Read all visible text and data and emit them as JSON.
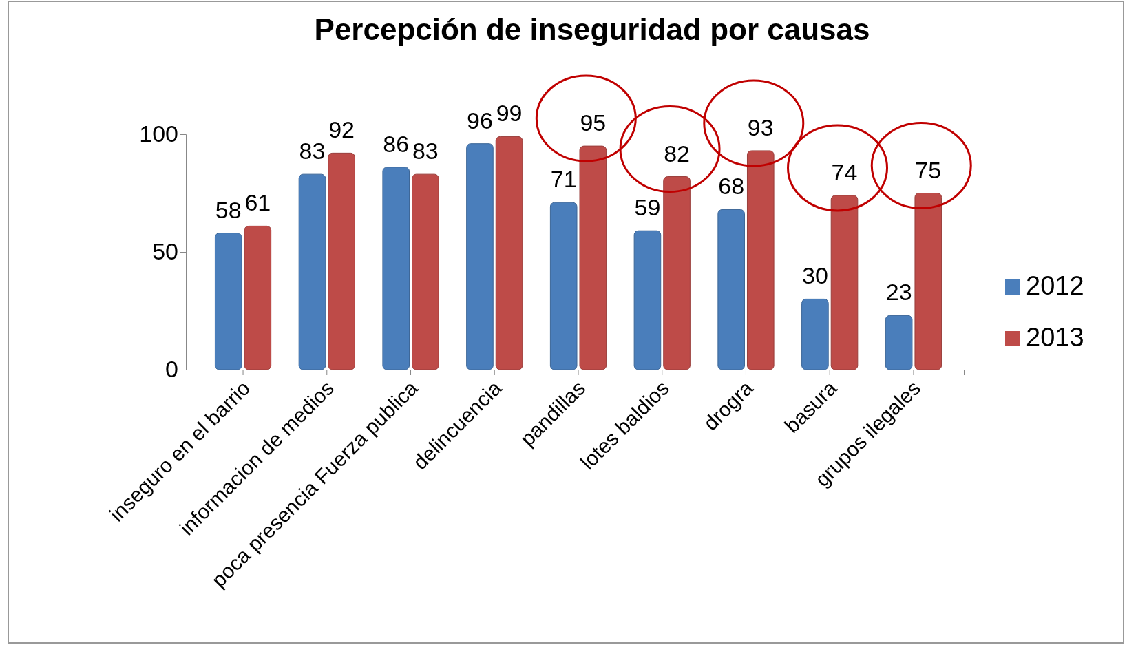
{
  "chart_data": {
    "type": "bar",
    "title": "Percepción de inseguridad por causas",
    "categories": [
      "inseguro en el barrio",
      "informacion de medios",
      "poca presencia Fuerza publica",
      "delincuencia",
      "pandillas",
      "lotes baldios",
      "drogra",
      "basura",
      "grupos ilegales"
    ],
    "series": [
      {
        "name": "2012",
        "color": "#4a7ebb",
        "values": [
          58,
          83,
          86,
          96,
          71,
          59,
          68,
          30,
          23
        ]
      },
      {
        "name": "2013",
        "color": "#be4b48",
        "values": [
          61,
          92,
          83,
          99,
          95,
          82,
          93,
          74,
          75
        ]
      }
    ],
    "ylim": [
      0,
      100
    ],
    "yticks": [
      0,
      50,
      100
    ],
    "grid": false,
    "legend": "right",
    "data_labels": true
  }
}
